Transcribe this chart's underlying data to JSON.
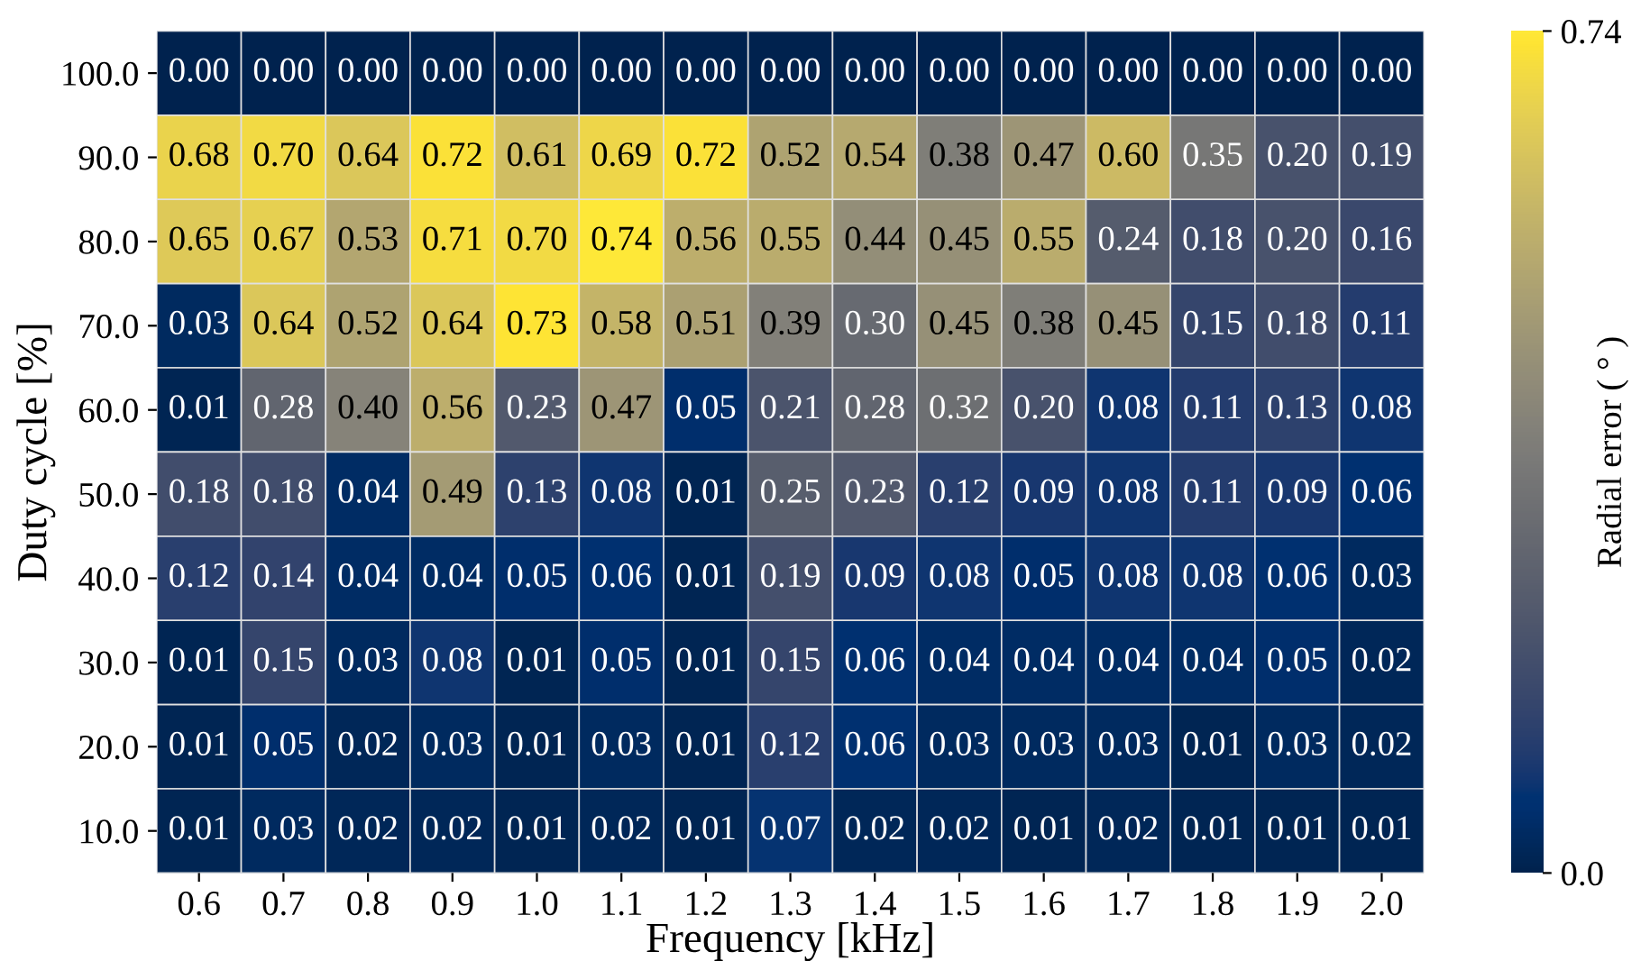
{
  "chart_data": {
    "type": "heatmap",
    "xlabel": "Frequency [kHz]",
    "ylabel": "Duty cycle [%]",
    "clabel": "Radial error ( ° )",
    "categories": [
      "0.6",
      "0.7",
      "0.8",
      "0.9",
      "1.0",
      "1.1",
      "1.2",
      "1.3",
      "1.4",
      "1.5",
      "1.6",
      "1.7",
      "1.8",
      "1.9",
      "2.0"
    ],
    "y_categories": [
      "100.0",
      "90.0",
      "80.0",
      "70.0",
      "60.0",
      "50.0",
      "40.0",
      "30.0",
      "20.0",
      "10.0"
    ],
    "cells": [
      [
        0.0,
        0.0,
        0.0,
        0.0,
        0.0,
        0.0,
        0.0,
        0.0,
        0.0,
        0.0,
        0.0,
        0.0,
        0.0,
        0.0,
        0.0
      ],
      [
        0.68,
        0.7,
        0.64,
        0.72,
        0.61,
        0.69,
        0.72,
        0.52,
        0.54,
        0.38,
        0.47,
        0.6,
        0.35,
        0.2,
        0.19
      ],
      [
        0.65,
        0.67,
        0.53,
        0.71,
        0.7,
        0.74,
        0.56,
        0.55,
        0.44,
        0.45,
        0.55,
        0.24,
        0.18,
        0.2,
        0.16
      ],
      [
        0.03,
        0.64,
        0.52,
        0.64,
        0.73,
        0.58,
        0.51,
        0.39,
        0.3,
        0.45,
        0.38,
        0.45,
        0.15,
        0.18,
        0.11
      ],
      [
        0.01,
        0.28,
        0.4,
        0.56,
        0.23,
        0.47,
        0.05,
        0.21,
        0.28,
        0.32,
        0.2,
        0.08,
        0.11,
        0.13,
        0.08
      ],
      [
        0.18,
        0.18,
        0.04,
        0.49,
        0.13,
        0.08,
        0.01,
        0.25,
        0.23,
        0.12,
        0.09,
        0.08,
        0.11,
        0.09,
        0.06
      ],
      [
        0.12,
        0.14,
        0.04,
        0.04,
        0.05,
        0.06,
        0.01,
        0.19,
        0.09,
        0.08,
        0.05,
        0.08,
        0.08,
        0.06,
        0.03
      ],
      [
        0.01,
        0.15,
        0.03,
        0.08,
        0.01,
        0.05,
        0.01,
        0.15,
        0.06,
        0.04,
        0.04,
        0.04,
        0.04,
        0.05,
        0.02
      ],
      [
        0.01,
        0.05,
        0.02,
        0.03,
        0.01,
        0.03,
        0.01,
        0.12,
        0.06,
        0.03,
        0.03,
        0.03,
        0.01,
        0.03,
        0.02
      ],
      [
        0.01,
        0.03,
        0.02,
        0.02,
        0.01,
        0.02,
        0.01,
        0.07,
        0.02,
        0.02,
        0.01,
        0.02,
        0.01,
        0.01,
        0.01
      ]
    ],
    "cell_labels": [
      [
        "0.00",
        "0.00",
        "0.00",
        "0.00",
        "0.00",
        "0.00",
        "0.00",
        "0.00",
        "0.00",
        "0.00",
        "0.00",
        "0.00",
        "0.00",
        "0.00",
        "0.00"
      ],
      [
        "0.68",
        "0.70",
        "0.64",
        "0.72",
        "0.61",
        "0.69",
        "0.72",
        "0.52",
        "0.54",
        "0.38",
        "0.47",
        "0.60",
        "0.35",
        "0.20",
        "0.19"
      ],
      [
        "0.65",
        "0.67",
        "0.53",
        "0.71",
        "0.70",
        "0.74",
        "0.56",
        "0.55",
        "0.44",
        "0.45",
        "0.55",
        "0.24",
        "0.18",
        "0.20",
        "0.16"
      ],
      [
        "0.03",
        "0.64",
        "0.52",
        "0.64",
        "0.73",
        "0.58",
        "0.51",
        "0.39",
        "0.30",
        "0.45",
        "0.38",
        "0.45",
        "0.15",
        "0.18",
        "0.11"
      ],
      [
        "0.01",
        "0.28",
        "0.40",
        "0.56",
        "0.23",
        "0.47",
        "0.05",
        "0.21",
        "0.28",
        "0.32",
        "0.20",
        "0.08",
        "0.11",
        "0.13",
        "0.08"
      ],
      [
        "0.18",
        "0.18",
        "0.04",
        "0.49",
        "0.13",
        "0.08",
        "0.01",
        "0.25",
        "0.23",
        "0.12",
        "0.09",
        "0.08",
        "0.11",
        "0.09",
        "0.06"
      ],
      [
        "0.12",
        "0.14",
        "0.04",
        "0.04",
        "0.05",
        "0.06",
        "0.01",
        "0.19",
        "0.09",
        "0.08",
        "0.05",
        "0.08",
        "0.08",
        "0.06",
        "0.03"
      ],
      [
        "0.01",
        "0.15",
        "0.03",
        "0.08",
        "0.01",
        "0.05",
        "0.01",
        "0.15",
        "0.06",
        "0.04",
        "0.04",
        "0.04",
        "0.04",
        "0.05",
        "0.02"
      ],
      [
        "0.01",
        "0.05",
        "0.02",
        "0.03",
        "0.01",
        "0.03",
        "0.01",
        "0.12",
        "0.06",
        "0.03",
        "0.03",
        "0.03",
        "0.01",
        "0.03",
        "0.02"
      ],
      [
        "0.01",
        "0.03",
        "0.02",
        "0.02",
        "0.01",
        "0.02",
        "0.01",
        "0.07",
        "0.02",
        "0.02",
        "0.01",
        "0.02",
        "0.01",
        "0.01",
        "0.01"
      ]
    ],
    "clim": [
      0,
      0.74
    ],
    "cticks": [
      {
        "value": 0,
        "label": "0.0"
      },
      0.74
    ]
  }
}
